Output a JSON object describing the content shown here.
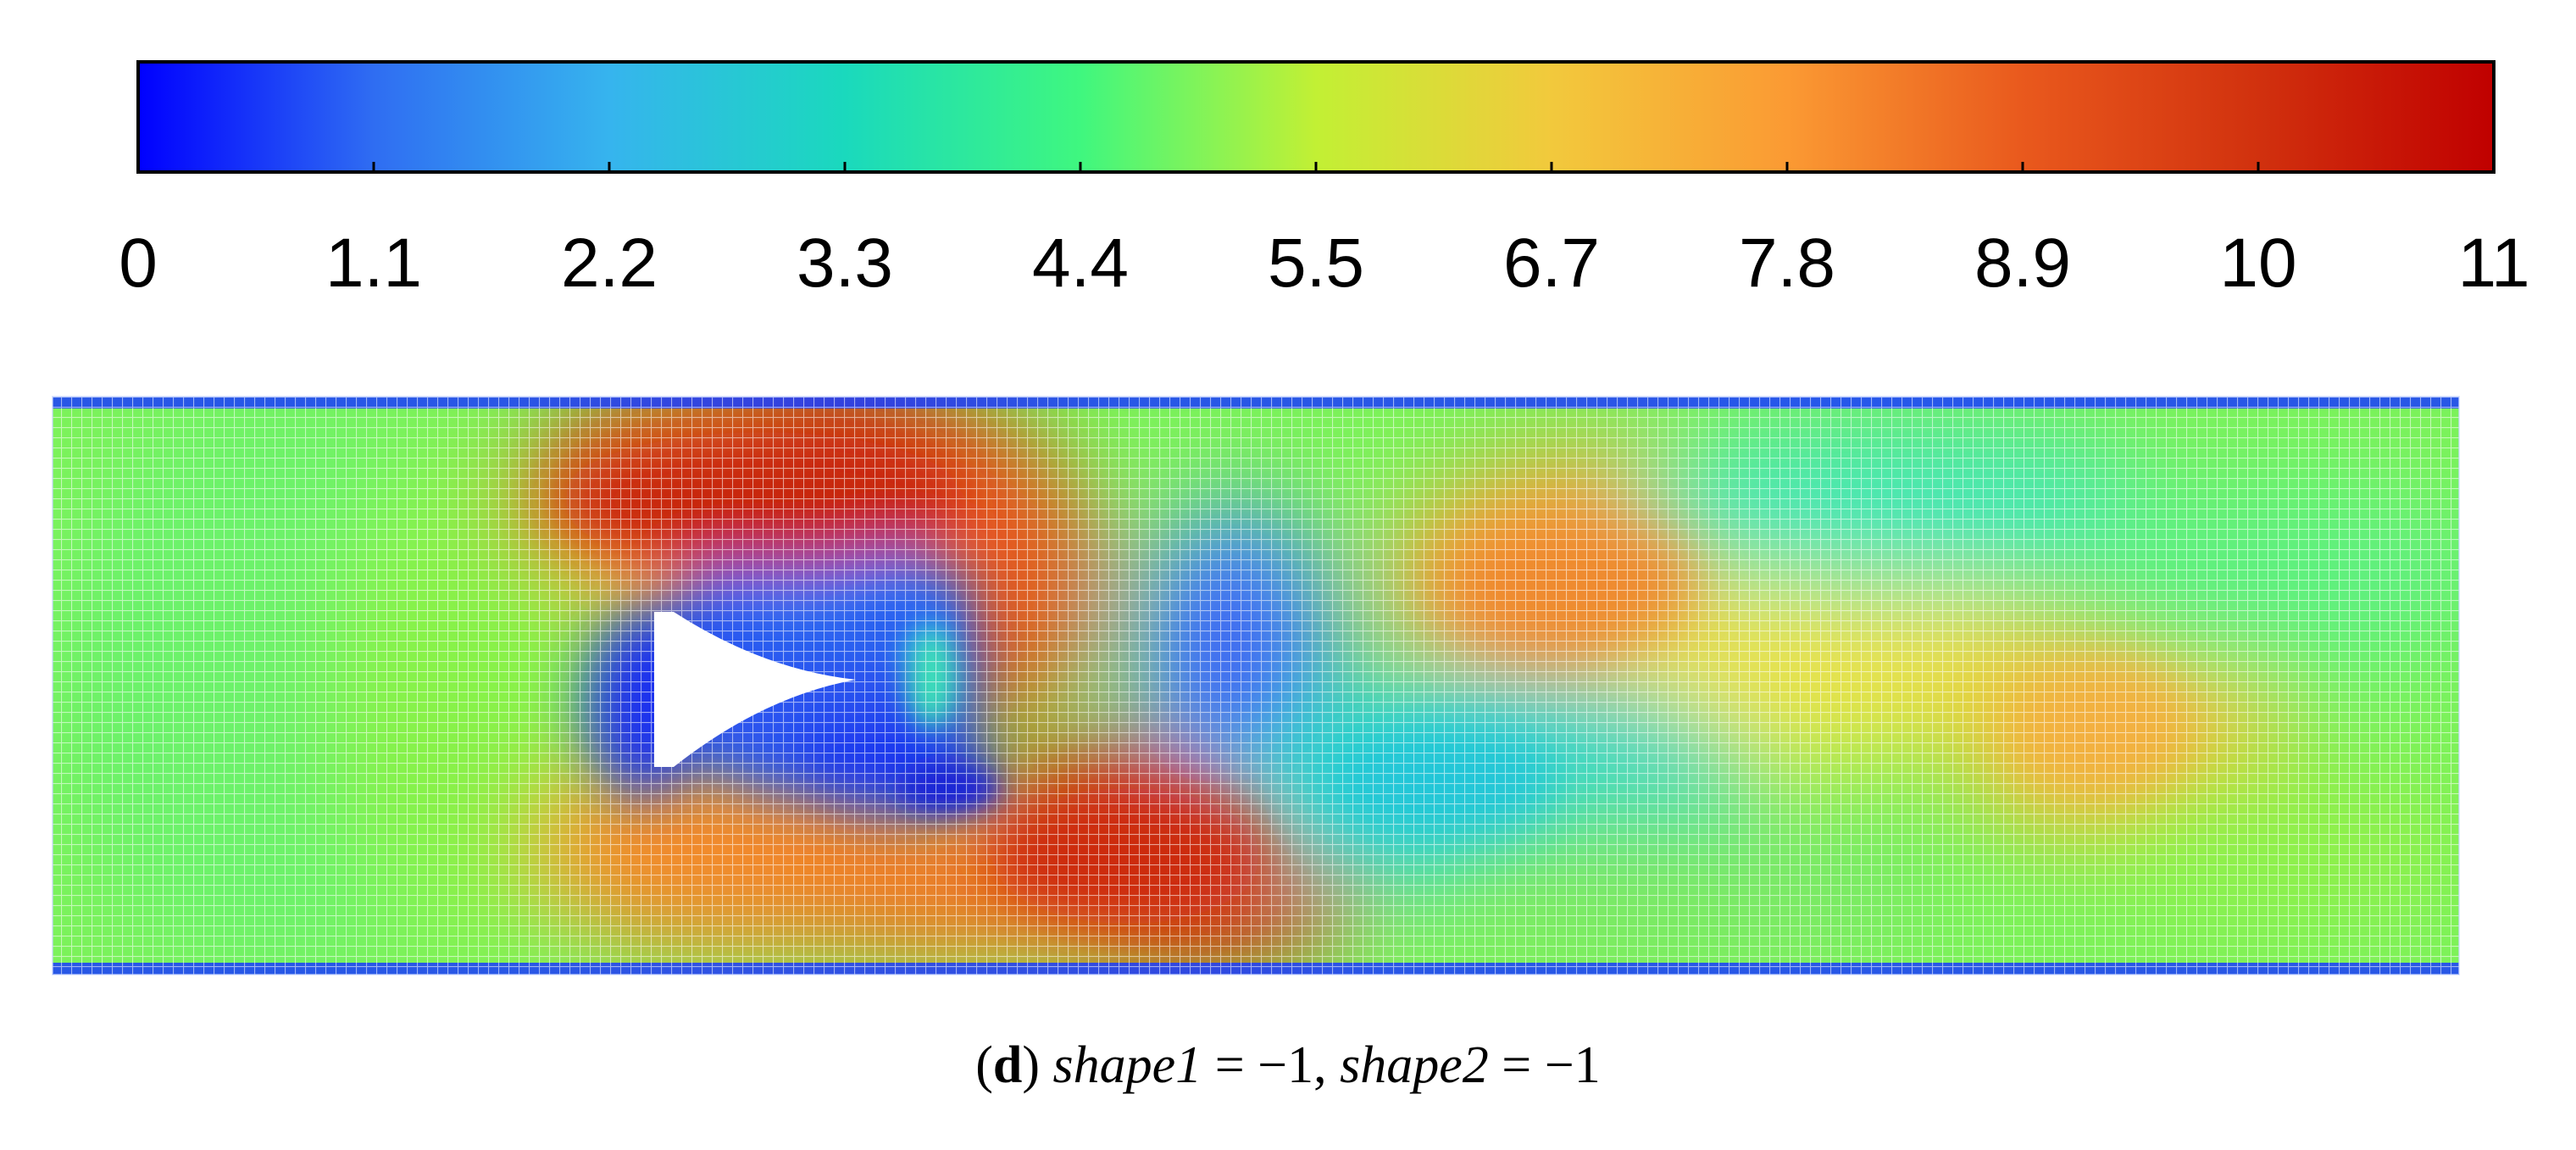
{
  "colorbar": {
    "min": 0,
    "max": 11,
    "tick_labels": [
      "0",
      "1.1",
      "2.2",
      "3.3",
      "4.4",
      "5.5",
      "6.7",
      "7.8",
      "8.9",
      "10",
      "11"
    ],
    "colors": [
      "#0000ff",
      "#2f6df2",
      "#36b4ee",
      "#1ad9bd",
      "#3ff77f",
      "#c2f034",
      "#f2c93c",
      "#fb9a33",
      "#e9591d",
      "#d1310e",
      "#c00000"
    ]
  },
  "caption": {
    "letter": "d",
    "var1": "shape1",
    "val1": "−1",
    "var2": "shape2",
    "val2": "−1"
  },
  "field": {
    "description_colors": {
      "free_stream": "#7cf25a",
      "high": "#cc2a12",
      "low": "#1d2cf0",
      "wall": "#1a3cff"
    }
  }
}
